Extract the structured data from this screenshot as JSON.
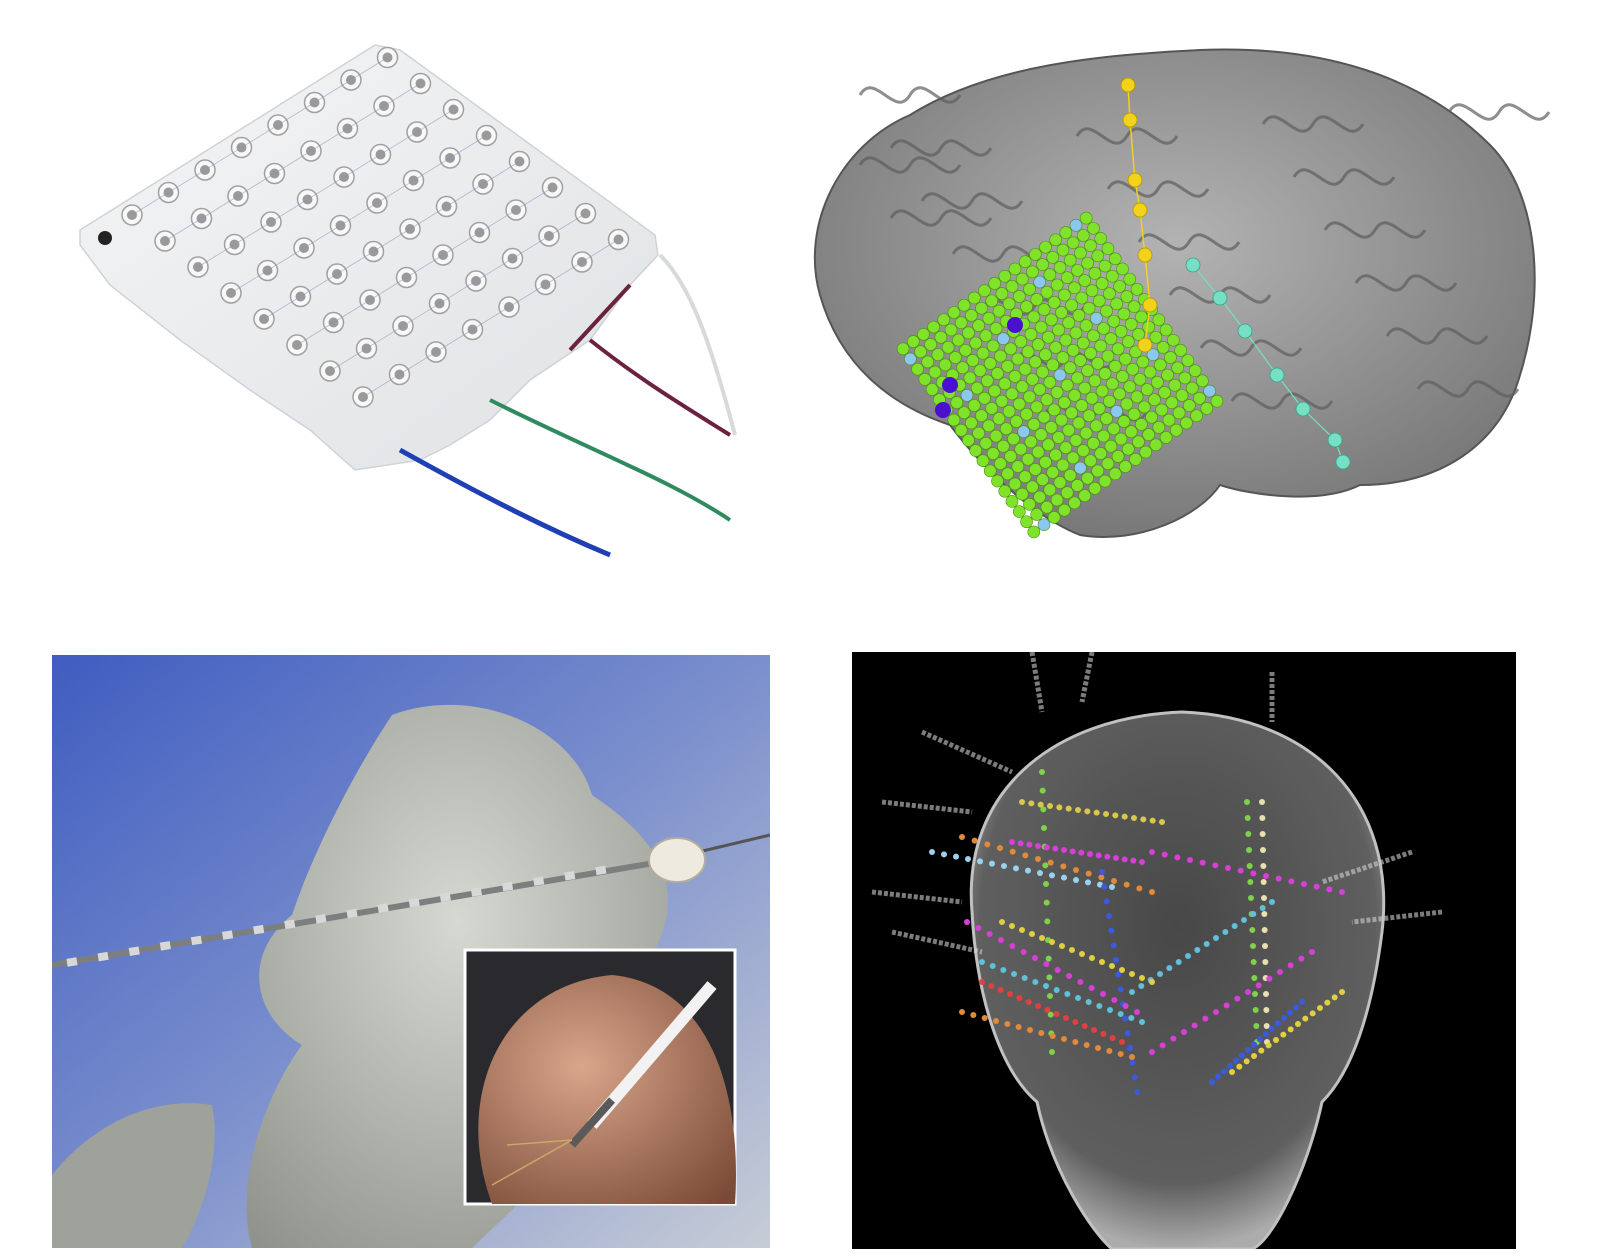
{
  "figure": {
    "panels": [
      {
        "id": "grid",
        "subject": "ecog-electrode-grid"
      },
      {
        "id": "brain",
        "subject": "cortex-model-with-electrodes"
      },
      {
        "id": "depth",
        "subject": "depth-electrode-in-gloved-hand"
      },
      {
        "id": "ct",
        "subject": "ct-skull-with-seeg-leads"
      }
    ],
    "colors": {
      "grid_sheet": "#e9ecee",
      "lead_blue": "#1f3fb4",
      "lead_green": "#2f8a5f",
      "lead_maroon": "#6b2240",
      "lead_white": "#d7d9dc",
      "brain_gray": "#8f8f8f",
      "electrode_green": "#7fe32a",
      "electrode_yellow": "#f2d21a",
      "electrode_teal": "#76e0c4",
      "electrode_blue": "#8ac8f0",
      "electrode_purple": "#4b0fd0",
      "glove": "#b9bcb4",
      "drape": "#5f78c8",
      "ct_background": "#000000"
    }
  }
}
